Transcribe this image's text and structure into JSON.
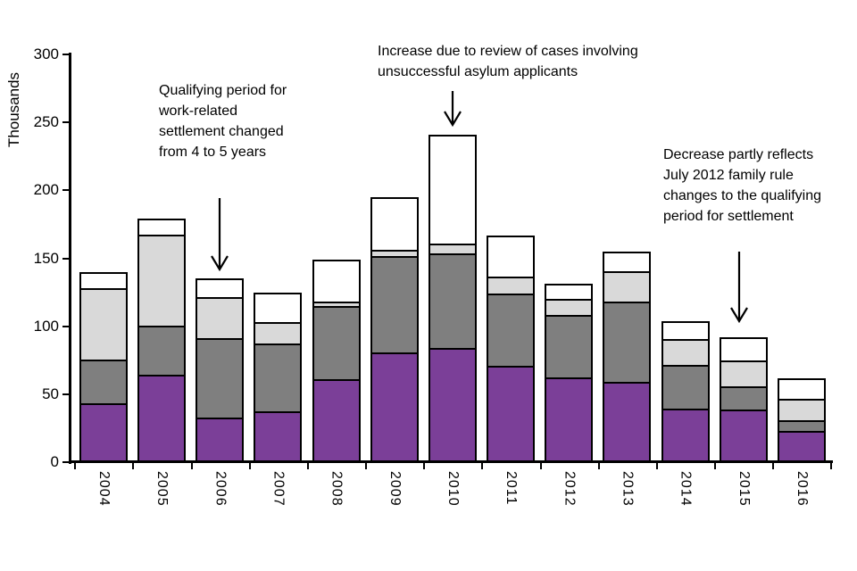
{
  "chart_data": {
    "type": "bar",
    "stacked": true,
    "title": "",
    "ylabel": "Thousands",
    "xlabel": "",
    "ylim": [
      0,
      300
    ],
    "yticks": [
      0,
      50,
      100,
      150,
      200,
      250,
      300
    ],
    "grid": false,
    "legend": "none",
    "categories": [
      "2004",
      "2005",
      "2006",
      "2007",
      "2008",
      "2009",
      "2010",
      "2011",
      "2012",
      "2013",
      "2014",
      "2015",
      "2016"
    ],
    "series": [
      {
        "name": "purple-segment",
        "color": "#7B3F98",
        "values": [
          43,
          64,
          32,
          37,
          61,
          81,
          84,
          71,
          63,
          59,
          39,
          39,
          23
        ]
      },
      {
        "name": "dark-gray-segment",
        "color": "#7F7F7F",
        "values": [
          32,
          36,
          60,
          51,
          55,
          72,
          70,
          54,
          47,
          60,
          33,
          17,
          7
        ]
      },
      {
        "name": "light-gray-segment",
        "color": "#D9D9D9",
        "values": [
          54,
          68,
          30,
          15,
          2,
          3,
          6,
          12,
          11,
          22,
          19,
          19,
          16
        ]
      },
      {
        "name": "white-segment",
        "color": "#FFFFFF",
        "values": [
          11,
          11,
          13,
          22,
          31,
          39,
          81,
          30,
          10,
          14,
          13,
          17,
          16
        ]
      }
    ],
    "totals": [
      140,
      179,
      135,
      125,
      149,
      195,
      241,
      167,
      131,
      155,
      104,
      92,
      62
    ],
    "annotations": [
      {
        "text": "Qualifying period for\nwork-related\nsettlement changed\nfrom 4 to 5 years",
        "arrow_points_to_category": "2006"
      },
      {
        "text": "Increase due to review of cases involving\nunsuccessful asylum applicants",
        "arrow_points_to_category": "2010"
      },
      {
        "text": "Decrease partly reflects\nJuly 2012 family rule\nchanges to the qualifying\nperiod for settlement",
        "arrow_points_to_category": "2015"
      }
    ]
  }
}
